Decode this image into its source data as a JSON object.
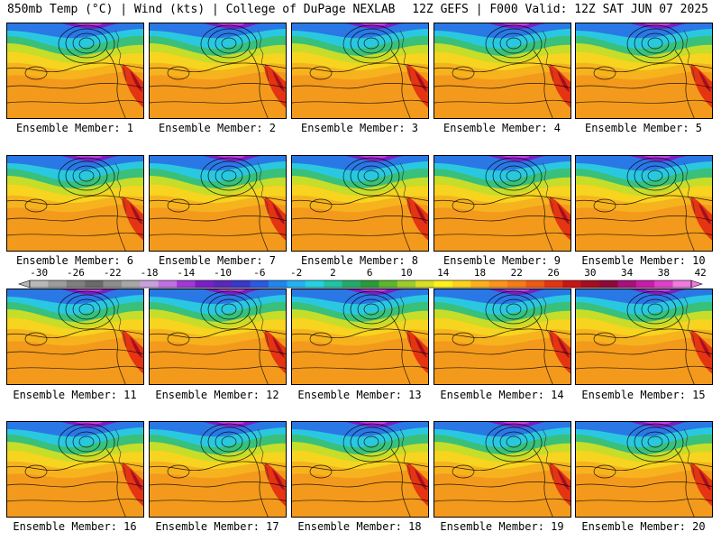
{
  "header": {
    "left": "850mb Temp (°C) | Wind (kts) | College of DuPage NEXLAB",
    "right": "12Z GEFS | F000 Valid: 12Z SAT JUN 07 2025"
  },
  "members": [
    "Ensemble Member: 1",
    "Ensemble Member: 2",
    "Ensemble Member: 3",
    "Ensemble Member: 4",
    "Ensemble Member: 5",
    "Ensemble Member: 6",
    "Ensemble Member: 7",
    "Ensemble Member: 8",
    "Ensemble Member: 9",
    "Ensemble Member: 10",
    "Ensemble Member: 11",
    "Ensemble Member: 12",
    "Ensemble Member: 13",
    "Ensemble Member: 14",
    "Ensemble Member: 15",
    "Ensemble Member: 16",
    "Ensemble Member: 17",
    "Ensemble Member: 18",
    "Ensemble Member: 19",
    "Ensemble Member: 20"
  ],
  "colorbar": {
    "labels": [
      "-30",
      "-26",
      "-22",
      "-18",
      "-14",
      "-10",
      "-6",
      "-2",
      "2",
      "6",
      "10",
      "14",
      "18",
      "22",
      "26",
      "30",
      "34",
      "38",
      "42"
    ],
    "colors": [
      "#b8b8b8",
      "#9c9c9c",
      "#7f7f7f",
      "#6a6a6a",
      "#8d8d8d",
      "#a7a7a7",
      "#c9a0dc",
      "#c070e0",
      "#9f3ad8",
      "#7a1fc6",
      "#5a28b8",
      "#3a38c8",
      "#2a5ae0",
      "#1f86f0",
      "#22b2f2",
      "#22d2e0",
      "#1ec4a4",
      "#22aa6a",
      "#2a9a3a",
      "#5ab62e",
      "#9ccc2a",
      "#d8e020",
      "#fff21a",
      "#ffd21a",
      "#ffb018",
      "#ff9418",
      "#f87a14",
      "#f05a12",
      "#e43412",
      "#c81414",
      "#a40e1e",
      "#8c0a3a",
      "#a8107a",
      "#c81ca8",
      "#e040c8",
      "#f07ae0"
    ]
  }
}
